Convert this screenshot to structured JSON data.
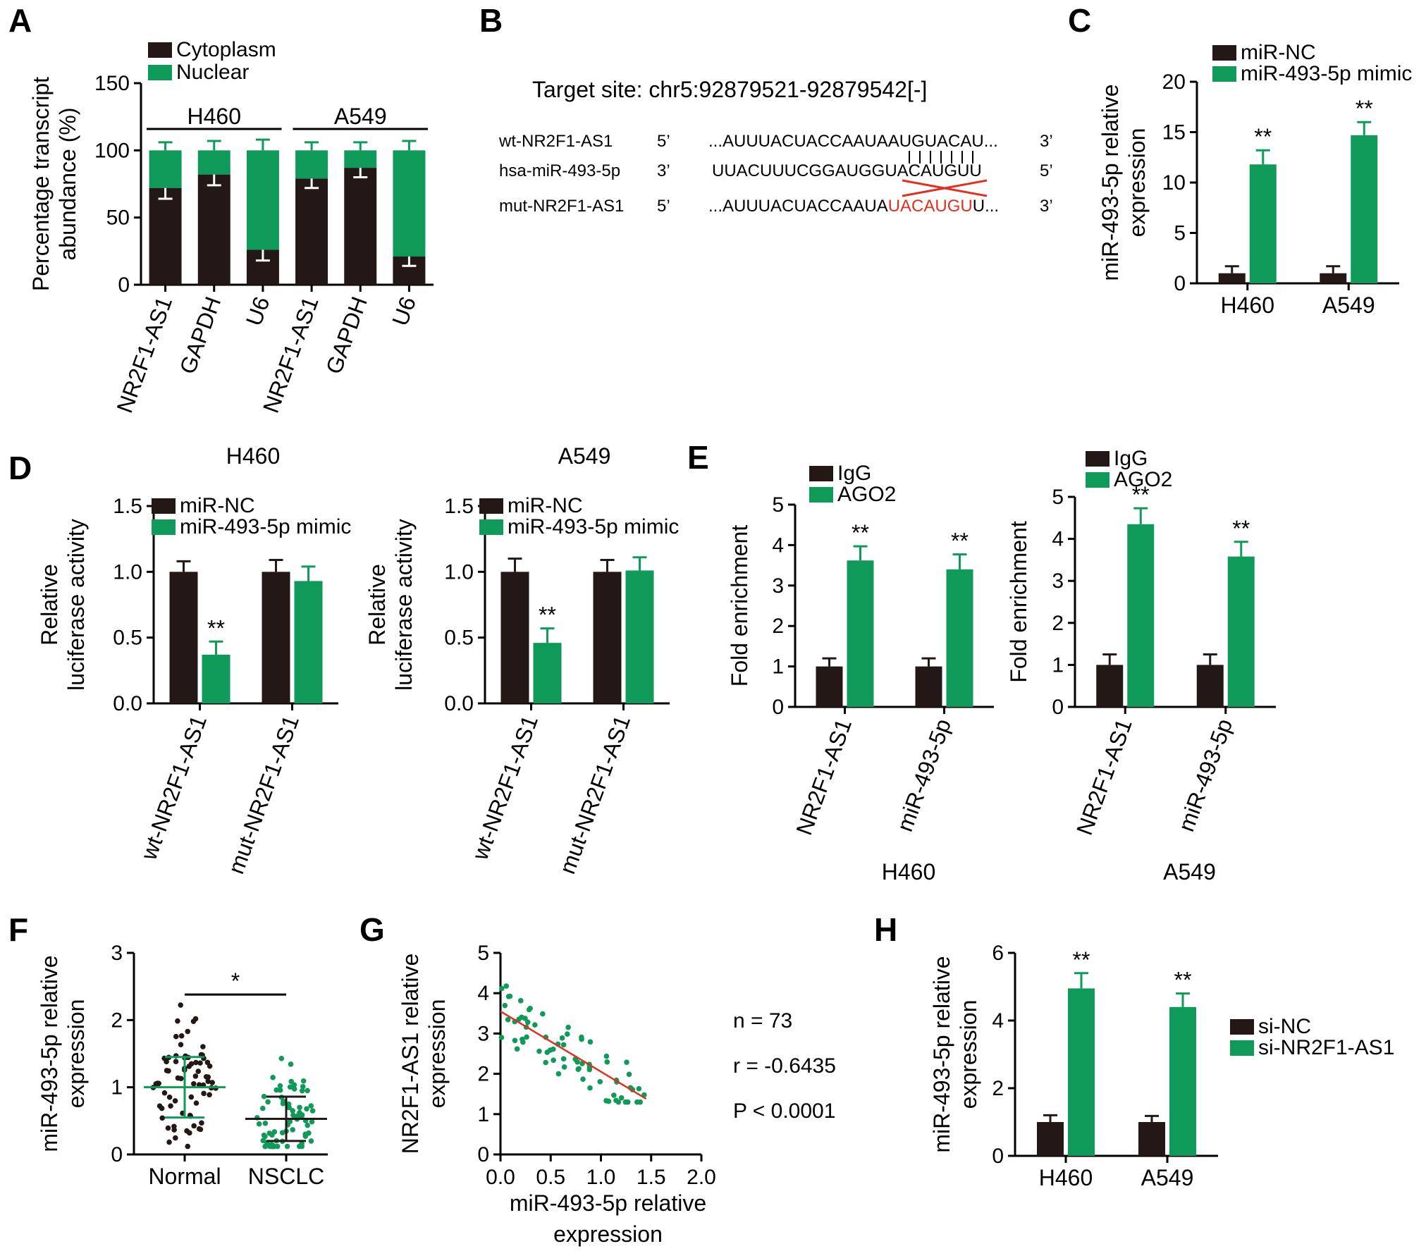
{
  "colors": {
    "black": "#231815",
    "green": "#0f9a5a",
    "red": "#e0301e",
    "line": "#000000"
  },
  "panels": {
    "A": "A",
    "B": "B",
    "C": "C",
    "D": "D",
    "E": "E",
    "F": "F",
    "G": "G",
    "H": "H"
  },
  "panelB": {
    "title": "Target site: chr5:92879521-92879542[-]",
    "rows": [
      {
        "label": "wt-NR2F1-AS1",
        "left": "5’",
        "seq": "...AUUUACUACCAAUAAUGUACAU...",
        "right": "3’"
      },
      {
        "label": "hsa-miR-493-5p",
        "left": "3’",
        "seq": "UUACUUUCGGAUGGUACAUGUU",
        "right": "5’"
      },
      {
        "label": "mut-NR2F1-AS1",
        "left": "5’",
        "seq_pre": "...AUUUACUACCAAUA",
        "seq_mut": "UACAUGU",
        "seq_post": "U...",
        "right": "3’"
      }
    ]
  },
  "panelG_stats": {
    "n": "n = 73",
    "r": "r = -0.6435",
    "p": "P < 0.0001"
  },
  "chart_data": [
    {
      "panel": "A",
      "type": "bar",
      "stacked": true,
      "categories": [
        "NR2F1-AS1",
        "GAPDH",
        "U6",
        "NR2F1-AS1",
        "GAPDH",
        "U6"
      ],
      "groups": [
        {
          "label": "H460",
          "from": 0,
          "to": 2
        },
        {
          "label": "A549",
          "from": 3,
          "to": 5
        }
      ],
      "series": [
        {
          "name": "Cytoplasm",
          "color": "#231815",
          "values": [
            72,
            82,
            26,
            79,
            87,
            21
          ],
          "errors": [
            8,
            8,
            8,
            7,
            7,
            7
          ]
        },
        {
          "name": "Nuclear",
          "color": "#0f9a5a",
          "values": [
            28,
            18,
            74,
            21,
            13,
            79
          ],
          "errors": [
            6,
            7,
            8,
            6,
            6,
            7
          ]
        }
      ],
      "ylabel": [
        "Percentage transcript",
        "abundance (%)"
      ],
      "ylim": [
        0,
        150
      ],
      "yticks": [
        "0",
        "50",
        "100",
        "150"
      ]
    },
    {
      "panel": "C",
      "type": "bar",
      "categories": [
        "H460",
        "A549"
      ],
      "series": [
        {
          "name": "miR-NC",
          "color": "#231815",
          "values": [
            1.0,
            1.0
          ],
          "errors": [
            0.7,
            0.7
          ]
        },
        {
          "name": "miR-493-5p mimic",
          "color": "#0f9a5a",
          "values": [
            11.8,
            14.7
          ],
          "errors": [
            1.4,
            1.3
          ]
        }
      ],
      "annotations": [
        "**",
        "**"
      ],
      "ylabel": [
        "miR-493-5p relative",
        "expression"
      ],
      "ylim": [
        0,
        20
      ],
      "yticks": [
        "0",
        "5",
        "10",
        "15",
        "20"
      ]
    },
    {
      "panel": "D1",
      "type": "bar",
      "title": "H460",
      "categories": [
        "wt-NR2F1-AS1",
        "mut-NR2F1-AS1"
      ],
      "series": [
        {
          "name": "miR-NC",
          "color": "#231815",
          "values": [
            1.0,
            1.0
          ],
          "errors": [
            0.08,
            0.09
          ]
        },
        {
          "name": "miR-493-5p mimic",
          "color": "#0f9a5a",
          "values": [
            0.37,
            0.93
          ],
          "errors": [
            0.1,
            0.11
          ]
        }
      ],
      "annotations": [
        "**",
        ""
      ],
      "ylabel": [
        "Relative",
        "luciferase activity"
      ],
      "ylim": [
        0,
        1.5
      ],
      "yticks": [
        "0.0",
        "0.5",
        "1.0",
        "1.5"
      ]
    },
    {
      "panel": "D2",
      "type": "bar",
      "title": "A549",
      "categories": [
        "wt-NR2F1-AS1",
        "mut-NR2F1-AS1"
      ],
      "series": [
        {
          "name": "miR-NC",
          "color": "#231815",
          "values": [
            1.0,
            1.0
          ],
          "errors": [
            0.1,
            0.09
          ]
        },
        {
          "name": "miR-493-5p mimic",
          "color": "#0f9a5a",
          "values": [
            0.46,
            1.01
          ],
          "errors": [
            0.11,
            0.1
          ]
        }
      ],
      "annotations": [
        "**",
        ""
      ],
      "ylabel": [
        "Relative",
        "luciferase activity"
      ],
      "ylim": [
        0,
        1.5
      ],
      "yticks": [
        "0.0",
        "0.5",
        "1.0",
        "1.5"
      ]
    },
    {
      "panel": "E1",
      "type": "bar",
      "xtitle": "H460",
      "categories": [
        "NR2F1-AS1",
        "miR-493-5p"
      ],
      "series": [
        {
          "name": "IgG",
          "color": "#231815",
          "values": [
            1.0,
            1.0
          ],
          "errors": [
            0.2,
            0.2
          ]
        },
        {
          "name": "AGO2",
          "color": "#0f9a5a",
          "values": [
            3.62,
            3.4
          ],
          "errors": [
            0.35,
            0.37
          ]
        }
      ],
      "annotations": [
        "**",
        "**"
      ],
      "ylabel": [
        "Fold enrichment"
      ],
      "ylim": [
        0,
        5
      ],
      "yticks": [
        "0",
        "1",
        "2",
        "3",
        "4",
        "5"
      ]
    },
    {
      "panel": "E2",
      "type": "bar",
      "xtitle": "A549",
      "categories": [
        "NR2F1-AS1",
        "miR-493-5p"
      ],
      "series": [
        {
          "name": "IgG",
          "color": "#231815",
          "values": [
            1.0,
            1.0
          ],
          "errors": [
            0.25,
            0.25
          ]
        },
        {
          "name": "AGO2",
          "color": "#0f9a5a",
          "values": [
            4.35,
            3.58
          ],
          "errors": [
            0.38,
            0.35
          ]
        }
      ],
      "annotations": [
        "**",
        "**"
      ],
      "ylabel": [
        "Fold enrichment"
      ],
      "ylim": [
        0,
        5
      ],
      "yticks": [
        "0",
        "1",
        "2",
        "3",
        "4",
        "5"
      ]
    },
    {
      "panel": "F",
      "type": "scatter",
      "categories": [
        "Normal",
        "NSCLC"
      ],
      "groups": [
        {
          "name": "Normal",
          "color": "#231815",
          "n": 73,
          "mean": 1.0,
          "sd": 0.45
        },
        {
          "name": "NSCLC",
          "color": "#0f9a5a",
          "n": 73,
          "mean": 0.53,
          "sd": 0.33
        }
      ],
      "significance": "*",
      "ylabel": [
        "miR-493-5p relative",
        "expression"
      ],
      "ylim": [
        0,
        3
      ],
      "yticks": [
        "0",
        "1",
        "2",
        "3"
      ]
    },
    {
      "panel": "G",
      "type": "scatter",
      "n": 73,
      "fit": {
        "x0": 0.0,
        "y0": 3.55,
        "x1": 1.45,
        "y1": 1.38
      },
      "xlabel": [
        "miR-493-5p relative",
        "expression"
      ],
      "ylabel": [
        "NR2F1-AS1 relative",
        "expression"
      ],
      "xlim": [
        0,
        2
      ],
      "ylim": [
        0,
        5
      ],
      "xticks": [
        "0.0",
        "0.5",
        "1.0",
        "1.5",
        "2.0"
      ],
      "yticks": [
        "0",
        "1",
        "2",
        "3",
        "4",
        "5"
      ]
    },
    {
      "panel": "H",
      "type": "bar",
      "categories": [
        "H460",
        "A549"
      ],
      "series": [
        {
          "name": "si-NC",
          "color": "#231815",
          "values": [
            1.0,
            1.0
          ],
          "errors": [
            0.2,
            0.18
          ]
        },
        {
          "name": "si-NR2F1-AS1",
          "color": "#0f9a5a",
          "values": [
            4.95,
            4.4
          ],
          "errors": [
            0.45,
            0.4
          ]
        }
      ],
      "annotations": [
        "**",
        "**"
      ],
      "ylabel": [
        "miR-493-5p relative",
        "expression"
      ],
      "ylim": [
        0,
        6
      ],
      "yticks": [
        "0",
        "2",
        "4",
        "6"
      ]
    }
  ]
}
